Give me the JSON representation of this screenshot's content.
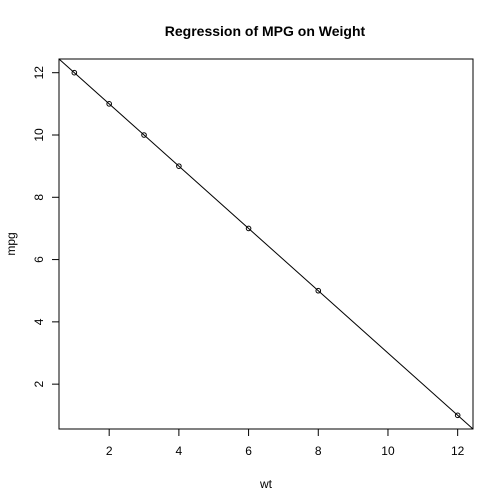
{
  "chart_data": {
    "type": "scatter",
    "title": "Regression of MPG on Weight",
    "xlabel": "wt",
    "ylabel": "mpg",
    "xlim": [
      0.56,
      12.44
    ],
    "ylim": [
      0.56,
      12.44
    ],
    "xticks": [
      2,
      4,
      6,
      8,
      10,
      12
    ],
    "yticks": [
      2,
      4,
      6,
      8,
      10,
      12
    ],
    "points": [
      {
        "x": 1,
        "y": 12
      },
      {
        "x": 2,
        "y": 11
      },
      {
        "x": 3,
        "y": 10
      },
      {
        "x": 4,
        "y": 9
      },
      {
        "x": 6,
        "y": 7
      },
      {
        "x": 8,
        "y": 5
      },
      {
        "x": 12,
        "y": 1
      }
    ],
    "regression": {
      "intercept": 13,
      "slope": -1
    },
    "grid": false,
    "colors": {
      "points": "#000000",
      "line": "#000000",
      "frame": "#000000"
    }
  }
}
